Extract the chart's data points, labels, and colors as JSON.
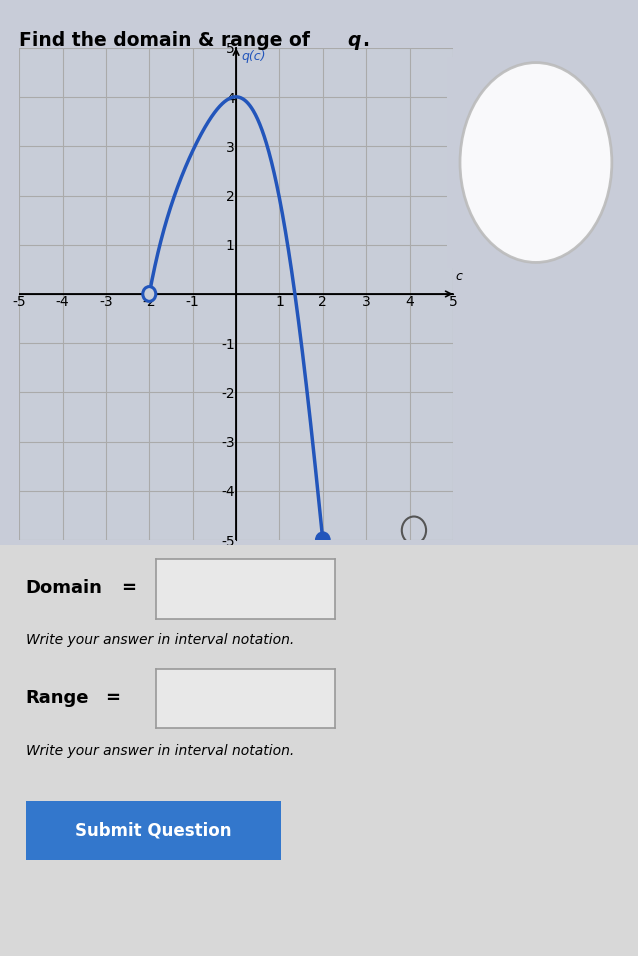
{
  "title_regular": "Find the domain & range of ",
  "title_italic": "q",
  "title_suffix": ".",
  "graph_label": "q(c)",
  "x_axis_label": "c",
  "x_min": -5,
  "x_max": 5,
  "y_min": -5,
  "y_max": 5,
  "open_point": [
    -2,
    0
  ],
  "closed_point": [
    2,
    -5
  ],
  "curve_color": "#2255BB",
  "graph_bg_color": "#c8cdd8",
  "page_bg_color": "#c8ccd8",
  "lower_bg_color": "#d8d8d8",
  "grid_color": "#aaaaaa",
  "domain_label": "Domain =",
  "range_label": "Range =",
  "write_answer_text": "Write your answer in interval notation.",
  "button_text": "Submit Question",
  "button_color": "#3377CC",
  "button_text_color": "#ffffff",
  "text_color": "#000000",
  "magnifier_x": 4.1,
  "magnifier_y": -4.8
}
